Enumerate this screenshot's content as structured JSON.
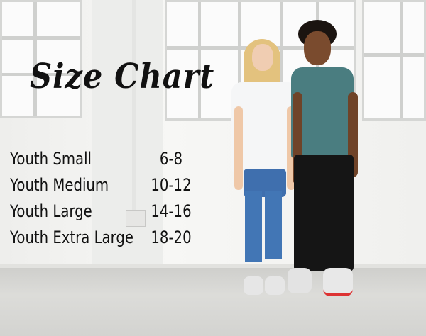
{
  "title": "Size Chart",
  "sizes": [
    {
      "label": "Youth Small",
      "range": "6-8"
    },
    {
      "label": "Youth Medium",
      "range": "10-12"
    },
    {
      "label": "Youth Large",
      "range": "14-16"
    },
    {
      "label": "Youth Extra Large",
      "range": "18-20"
    }
  ],
  "colors": {
    "text": "#111111",
    "boy_shirt": "#4a7d80",
    "girl_shirt": "#f5f6f7",
    "jeans": "#3f6fae",
    "black_pants": "#151515"
  }
}
